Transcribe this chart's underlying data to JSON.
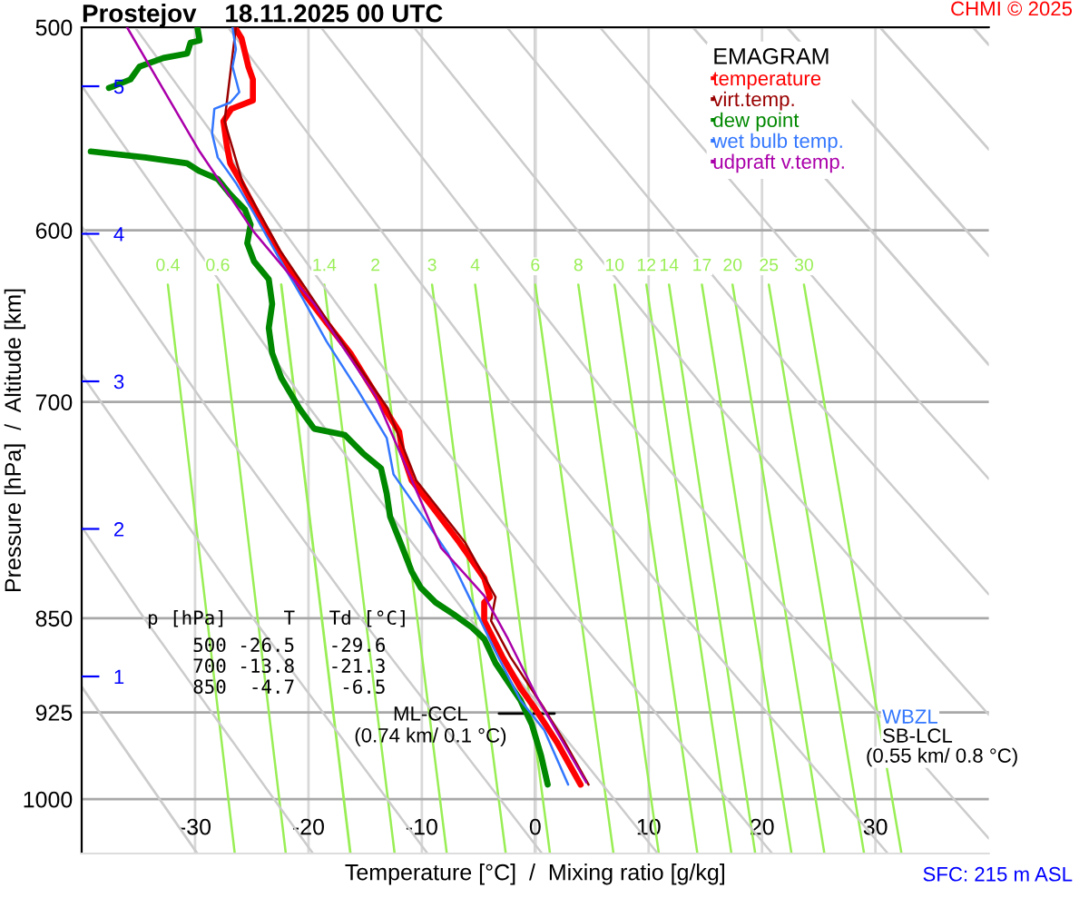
{
  "chart_data": {
    "type": "line",
    "title": "Prostejov    18.11.2025 00 UTC",
    "xlabel": "Temperature [°C]  /  Mixing ratio [g/kg]",
    "ylabel": "Pressure [hPa]  /  Altitude [km]",
    "legend_title": "EMAGRAM",
    "legend": "top right",
    "grid": true,
    "log": "y",
    "xlim": [
      -40,
      40
    ],
    "xticks": [
      -30,
      -20,
      -10,
      0,
      10,
      20,
      30
    ],
    "ylim": [
      1050,
      500
    ],
    "yticks": [
      500,
      600,
      700,
      850,
      925,
      1000
    ],
    "y2lim": [
      -0.2,
      5.4
    ],
    "y2ticks": [
      1,
      2,
      3,
      4,
      5
    ],
    "ref_lines": [
      {
        "axis": "x",
        "value": 0,
        "color": "#999999"
      }
    ],
    "annotations": [
      "CHMI © 2025",
      "SFC: 215 m ASL",
      "p [hPa]     T   Td [°C]",
      "    500 -26.5   -29.6",
      "    700 -13.8   -21.3",
      "    850  -4.7    -6.5",
      {
        "text": "ML-CCL\n(0.74 km/ 0.1 °C)",
        "x": 0.1,
        "y": 926
      },
      "WBZL",
      "SB-LCL",
      "(0.55 km/ 0.8 °C)"
    ],
    "series": [
      {
        "name": "temperature",
        "color": "#ff0000",
        "x": [
          -26.5,
          -25.9,
          -25.3,
          -24.9,
          -24.9,
          -26.8,
          -27.5,
          -27.2,
          -26.9,
          -25.9,
          -24.5,
          -22.7,
          -20.5,
          -18.4,
          -16.3,
          -14.7,
          -13.3,
          -12.0,
          -11.7,
          -10.9,
          -8.8,
          -6.7,
          -4.5,
          -4.0,
          -4.5,
          -4.5,
          -2.9,
          -1.3,
          0.0,
          1.9,
          4.0
        ],
        "values": [
          500,
          505,
          518,
          524,
          534,
          538,
          544,
          556,
          565,
          575,
          591,
          611,
          634,
          652,
          670,
          688,
          704,
          719,
          733,
          751,
          772,
          794,
          820,
          834,
          838,
          852,
          880,
          905,
          922,
          950,
          987
        ]
      },
      {
        "name": "virt.temp.",
        "color": "#990000",
        "x": [
          -26.4,
          -27.4,
          -25.8,
          -22.5,
          -18.2,
          -13.0,
          -10.5,
          -6.2,
          -3.5,
          -3.9,
          -2.2,
          0.8,
          2.6,
          4.7
        ],
        "values": [
          500,
          544,
          575,
          611,
          652,
          704,
          751,
          794,
          834,
          852,
          880,
          922,
          950,
          987
        ]
      },
      {
        "name": "dew point",
        "color": "#008800",
        "x": [
          -29.8,
          -29.6,
          -30.4,
          -30.7,
          -32.8,
          -34.9,
          -35.7,
          -37.1,
          -37.6,
          null,
          -39.2,
          -34.4,
          -30.7,
          -29.6,
          -28.0,
          -26.9,
          -25.6,
          -25.1,
          -25.4,
          -24.8,
          -23.5,
          -23.2,
          -23.5,
          -23.2,
          -22.4,
          -20.8,
          -19.5,
          -16.8,
          -15.2,
          -13.6,
          -13.1,
          -12.8,
          -11.7,
          -10.9,
          -10.1,
          -8.8,
          -7.2,
          -5.6,
          -4.5,
          -3.5,
          -2.4,
          -1.3,
          -0.3,
          0.5,
          1.1
        ],
        "values": [
          500,
          506,
          507,
          512,
          514,
          518,
          524,
          527,
          528,
          null,
          559,
          562,
          565,
          569,
          573,
          581,
          589,
          597,
          607,
          617,
          627,
          641,
          655,
          670,
          685,
          704,
          717,
          721,
          733,
          743,
          760,
          776,
          798,
          815,
          827,
          838,
          847,
          857,
          866,
          885,
          900,
          915,
          935,
          961,
          987
        ]
      },
      {
        "name": "wet bulb temp.",
        "color": "#3377ff",
        "x": [
          -26.7,
          -26.4,
          -26.7,
          -26.1,
          -26.9,
          -28.3,
          -28.5,
          -28.0,
          -26.4,
          -24.8,
          -22.7,
          -20.5,
          -18.4,
          -15.7,
          -13.1,
          -12.5,
          -9.9,
          -7.7,
          -5.6,
          -3.5,
          -1.3,
          0.8,
          2.9
        ],
        "values": [
          500,
          510,
          518,
          530,
          535,
          538,
          550,
          562,
          575,
          591,
          614,
          638,
          663,
          692,
          723,
          747,
          776,
          802,
          838,
          876,
          915,
          940,
          987
        ]
      },
      {
        "name": "udpraft v.temp.",
        "color": "#aa00aa",
        "x": [
          -36.0,
          -29.6,
          -24.8,
          -19.5,
          -14.1,
          -8.3,
          -4.5,
          -2.4,
          0.3,
          4.5
        ],
        "values": [
          500,
          559,
          601,
          641,
          696,
          798,
          833,
          866,
          915,
          985
        ]
      },
      {
        "color": "#000000",
        "x": [
          -3.2,
          1.7
        ],
        "values": [
          926,
          926
        ]
      },
      {
        "name": "0.4",
        "color": "#99ee55",
        "x": [
          -32.4,
          -26.5
        ],
        "values": [
          630,
          1050
        ]
      },
      {
        "name": "0.6",
        "color": "#99ee55",
        "x": [
          -28.0,
          -22.0
        ],
        "values": [
          630,
          1050
        ]
      },
      {
        "color": "#99ee55",
        "x": [
          -22.4,
          -16.3
        ],
        "values": [
          630,
          1050
        ]
      },
      {
        "name": "1.4",
        "color": "#99ee55",
        "x": [
          -18.6,
          -12.4
        ],
        "values": [
          630,
          1050
        ]
      },
      {
        "name": "2",
        "color": "#99ee55",
        "x": [
          -14.1,
          -7.8
        ],
        "values": [
          630,
          1050
        ]
      },
      {
        "name": "3",
        "color": "#99ee55",
        "x": [
          -9.1,
          -2.6
        ],
        "values": [
          630,
          1050
        ]
      },
      {
        "name": "4",
        "color": "#99ee55",
        "x": [
          -5.3,
          1.3
        ],
        "values": [
          630,
          1050
        ]
      },
      {
        "name": "6",
        "color": "#99ee55",
        "x": [
          0.0,
          6.9
        ],
        "values": [
          630,
          1050
        ]
      },
      {
        "name": "8",
        "color": "#99ee55",
        "x": [
          3.8,
          10.9
        ],
        "values": [
          630,
          1050
        ]
      },
      {
        "name": "10",
        "color": "#99ee55",
        "x": [
          7.0,
          14.3
        ],
        "values": [
          630,
          1050
        ]
      },
      {
        "name": "12",
        "color": "#99ee55",
        "x": [
          9.8,
          17.3
        ],
        "values": [
          630,
          1050
        ]
      },
      {
        "name": "14",
        "color": "#99ee55",
        "x": [
          11.8,
          19.4
        ],
        "values": [
          630,
          1050
        ]
      },
      {
        "name": "17",
        "color": "#99ee55",
        "x": [
          14.7,
          22.6
        ],
        "values": [
          630,
          1050
        ]
      },
      {
        "name": "20",
        "color": "#99ee55",
        "x": [
          17.4,
          25.5
        ],
        "values": [
          630,
          1050
        ]
      },
      {
        "name": "25",
        "color": "#99ee55",
        "x": [
          20.6,
          29.0
        ],
        "values": [
          630,
          1050
        ]
      },
      {
        "name": "30",
        "color": "#99ee55",
        "x": [
          23.7,
          32.3
        ],
        "values": [
          630,
          1050
        ]
      },
      {
        "color": "#cccccc",
        "x": [
          -40,
          -29.8
        ],
        "values": [
          904,
          1050
        ]
      },
      {
        "color": "#cccccc",
        "x": [
          -40,
          -34.5,
          -19.6
        ],
        "values": [
          783,
          850,
          1050
        ]
      },
      {
        "color": "#cccccc",
        "x": [
          -40,
          -38.3,
          -24.9,
          -9.5
        ],
        "values": [
          683,
          700,
          850,
          1050
        ]
      },
      {
        "color": "#cccccc",
        "x": [
          -40,
          -29.3,
          -15.4,
          0.6
        ],
        "values": [
          598,
          700,
          850,
          1050
        ]
      },
      {
        "color": "#cccccc",
        "x": [
          -40,
          -20.3,
          -5.8,
          10.8
        ],
        "values": [
          527,
          700,
          850,
          1050
        ]
      },
      {
        "color": "#cccccc",
        "x": [
          -35.3,
          -11.2,
          3.7,
          20.9
        ],
        "values": [
          500,
          700,
          850,
          1050
        ]
      },
      {
        "color": "#cccccc",
        "x": [
          -27.1,
          -2.2,
          13.3,
          31.1
        ],
        "values": [
          500,
          700,
          850,
          1050
        ]
      },
      {
        "color": "#cccccc",
        "x": [
          -18.9,
          6.8,
          22.8,
          40
        ],
        "values": [
          500,
          700,
          850,
          1036
        ]
      },
      {
        "color": "#cccccc",
        "x": [
          -10.7,
          15.9,
          32.4,
          40
        ],
        "values": [
          500,
          700,
          850,
          927
        ]
      },
      {
        "color": "#cccccc",
        "x": [
          -2.5,
          24.9,
          40
        ],
        "values": [
          500,
          700,
          832
        ]
      },
      {
        "color": "#cccccc",
        "x": [
          5.7,
          33.9,
          40
        ],
        "values": [
          500,
          700,
          750
        ]
      },
      {
        "color": "#cccccc",
        "x": [
          13.9,
          40
        ],
        "values": [
          500,
          677
        ]
      },
      {
        "color": "#cccccc",
        "x": [
          22.2,
          40
        ],
        "values": [
          500,
          614
        ]
      },
      {
        "color": "#cccccc",
        "x": [
          30.4,
          40
        ],
        "values": [
          500,
          558
        ]
      },
      {
        "color": "#cccccc",
        "x": [
          38.6,
          40
        ],
        "values": [
          500,
          508
        ]
      }
    ]
  }
}
